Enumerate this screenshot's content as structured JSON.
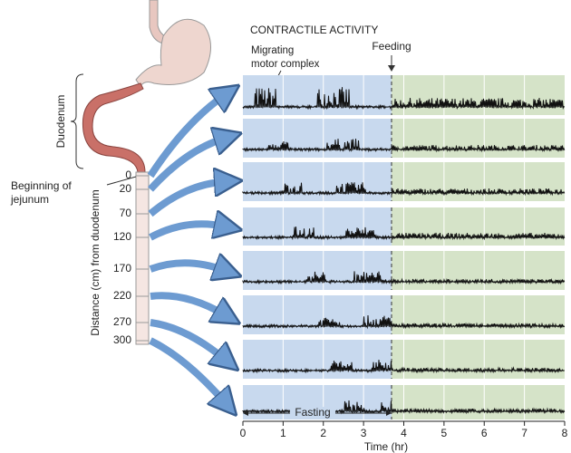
{
  "title": "CONTRACTILE ACTIVITY",
  "annotations": {
    "mmc_line1": "Migrating",
    "mmc_line2": "motor complex",
    "feeding": "Feeding",
    "fasting": "Fasting"
  },
  "anatomy": {
    "duodenum": "Duodenum",
    "jejunum_line1": "Beginning of",
    "jejunum_line2": "jejunum"
  },
  "distance_axis": {
    "label": "Distance (cm) from duodenum",
    "ticks": [
      0,
      20,
      70,
      120,
      170,
      220,
      270,
      300
    ]
  },
  "time_axis": {
    "label": "Time (hr)",
    "ticks": [
      0,
      1,
      2,
      3,
      4,
      5,
      6,
      7,
      8
    ]
  }
}
